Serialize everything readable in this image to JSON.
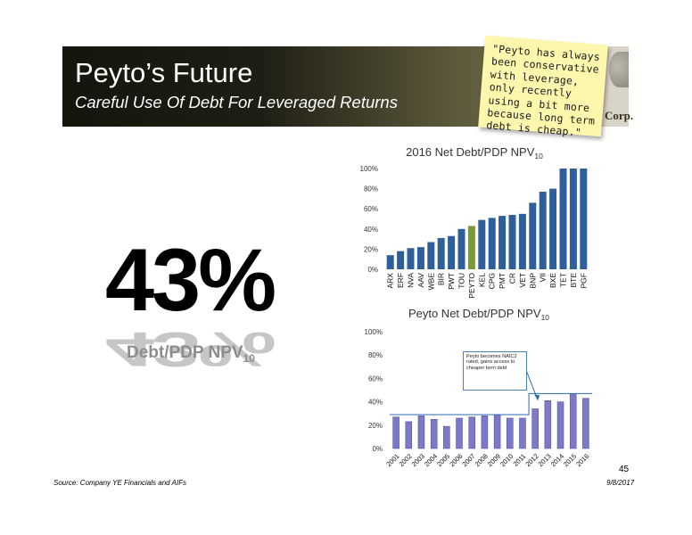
{
  "header": {
    "title": "Peyto’s Future",
    "subtitle": "Careful Use Of Debt For Leveraged Returns",
    "logo_text": "Corp."
  },
  "sticky_note": {
    "text": "\"Peyto has always been conservative with leverage, only recently using a bit more because long term debt is cheap.\""
  },
  "highlight": {
    "value": "43%",
    "caption": "Debt/PDP NPV",
    "caption_sub": "10"
  },
  "footer": {
    "source": "Source: Company YE Financials and AIFs",
    "date": "9/8/2017",
    "page": "45"
  },
  "colors": {
    "bar_blue": "#2f5f9a",
    "peyto_green": "#7a9a3a",
    "bar_purple": "#7b79c8",
    "line": "#2b6cb0"
  },
  "chart_data": [
    {
      "type": "bar",
      "title": "2016 Net Debt/PDP NPV",
      "title_sub": "10",
      "ylim": [
        0,
        100
      ],
      "yticks": [
        0,
        20,
        40,
        60,
        80,
        100
      ],
      "ytick_labels": [
        "0%",
        "20%",
        "40%",
        "60%",
        "80%",
        "100%"
      ],
      "categories": [
        "ARX",
        "ERF",
        "NVA",
        "AAV",
        "WBE",
        "BIR",
        "PWT",
        "TOU",
        "PEYTO",
        "KEL",
        "CPG",
        "PMT",
        "CR",
        "VET",
        "BNP",
        "VII",
        "BXE",
        "TET",
        "BTE",
        "PGF"
      ],
      "values": [
        14,
        18,
        21,
        22,
        27,
        31,
        33,
        40,
        43,
        49,
        51,
        53,
        54,
        55,
        66,
        77,
        80,
        100,
        100,
        100
      ],
      "highlight_category": "PEYTO"
    },
    {
      "type": "bar",
      "title": "Peyto Net Debt/PDP NPV",
      "title_sub": "10",
      "ylim": [
        0,
        100
      ],
      "yticks": [
        0,
        20,
        40,
        60,
        80,
        100
      ],
      "ytick_labels": [
        "0%",
        "20%",
        "40%",
        "60%",
        "80%",
        "100%"
      ],
      "categories": [
        "2001",
        "2002",
        "2003",
        "2004",
        "2005",
        "2006",
        "2007",
        "2008",
        "2009",
        "2010",
        "2011",
        "2012",
        "2013",
        "2014",
        "2015",
        "2016"
      ],
      "values": [
        27,
        23,
        28,
        25,
        19,
        26,
        27,
        28,
        29,
        26,
        26,
        34,
        41,
        40,
        47,
        43
      ],
      "reference_line": [
        {
          "x_from": "2001",
          "x_to": "2011",
          "y": 29
        },
        {
          "x_from": "2012",
          "x_to": "2016",
          "y": 47
        }
      ],
      "annotation": "Peyto becomes NAIC2 rated, gains access to cheaper term debt"
    }
  ]
}
